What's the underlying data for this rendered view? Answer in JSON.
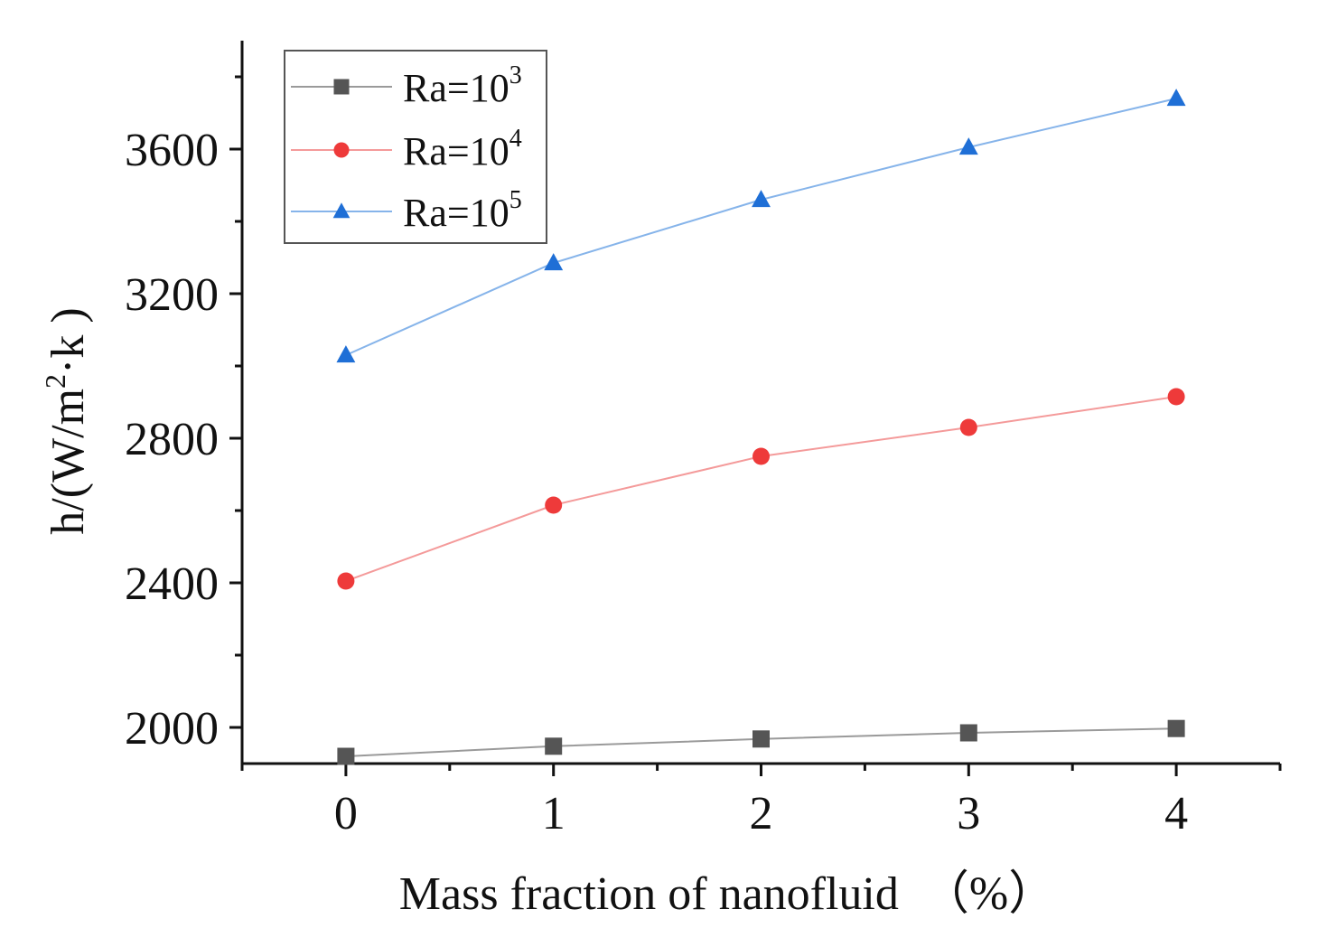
{
  "chart_data": {
    "type": "line",
    "title": "",
    "xlabel": "Mass fraction of nanofluid  （%）",
    "ylabel": {
      "prefix": "h/(W/m",
      "superscript": "2",
      "suffix": "·k )"
    },
    "x": [
      0,
      1,
      2,
      3,
      4
    ],
    "xlim": [
      -0.5,
      4.5
    ],
    "ylim": [
      1900,
      3900
    ],
    "xticks": [
      0,
      1,
      2,
      3,
      4
    ],
    "yticks": [
      2000,
      2400,
      2800,
      3200,
      3600
    ],
    "legend_position": "top-left",
    "series": [
      {
        "name": "Ra=10",
        "exponent": "3",
        "values": [
          1920,
          1948,
          1968,
          1985,
          1997
        ],
        "color": "#555555",
        "line_color": "#9a9a9a",
        "marker": "square"
      },
      {
        "name": "Ra=10",
        "exponent": "4",
        "values": [
          2405,
          2615,
          2750,
          2830,
          2915
        ],
        "color": "#ee3a3a",
        "line_color": "#f49a9a",
        "marker": "circle"
      },
      {
        "name": "Ra=10",
        "exponent": "5",
        "values": [
          3030,
          3285,
          3460,
          3605,
          3740
        ],
        "color": "#1f6fd6",
        "line_color": "#86b4ea",
        "marker": "triangle"
      }
    ]
  }
}
